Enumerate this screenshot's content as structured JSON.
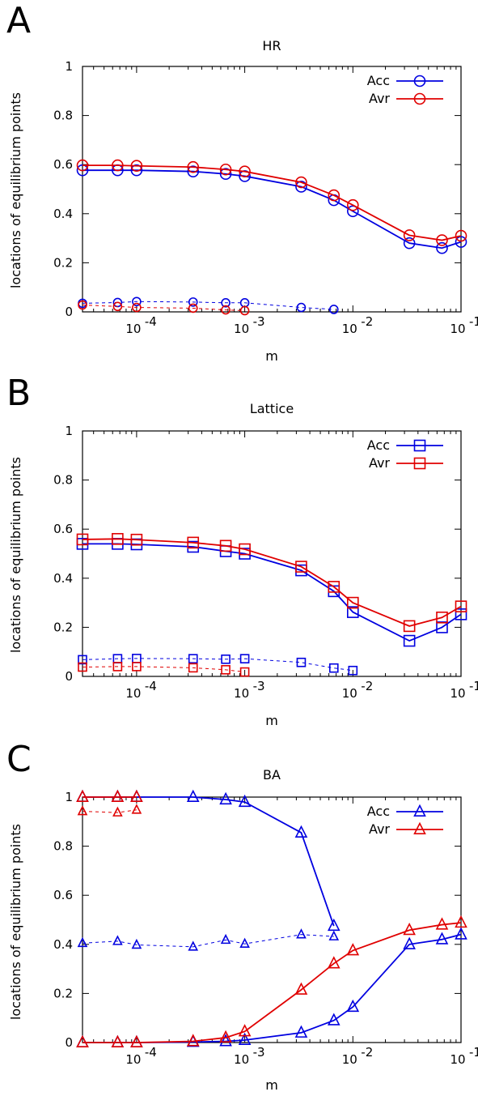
{
  "colors": {
    "acc": "#0000e0",
    "avr": "#e00000"
  },
  "chart_data": [
    {
      "panel": "A",
      "title": "HR",
      "type": "line",
      "marker": "circle",
      "xscale": "log",
      "xlim": [
        3.16e-05,
        0.1
      ],
      "ylim": [
        0,
        1
      ],
      "xlabel": "m",
      "ylabel": "locations of equilibrium points",
      "yticks": [
        "0",
        "0.2",
        "0.4",
        "0.6",
        "0.8",
        "1"
      ],
      "xticks": [
        {
          "base": "10",
          "exp": "-4",
          "value": 0.0001
        },
        {
          "base": "10",
          "exp": "-3",
          "value": 0.001
        },
        {
          "base": "10",
          "exp": "-2",
          "value": 0.01
        },
        {
          "base": "10",
          "exp": "-1",
          "value": 0.1
        }
      ],
      "legend_position": "top-right",
      "series": [
        {
          "name": "Acc",
          "color": "acc",
          "style": "solid",
          "x": [
            3.16e-05,
            6.67e-05,
            0.0001,
            0.000333,
            0.000667,
            0.001,
            0.00333,
            0.00667,
            0.01,
            0.0333,
            0.0667,
            0.1
          ],
          "y": [
            0.577,
            0.577,
            0.577,
            0.572,
            0.562,
            0.553,
            0.51,
            0.455,
            0.41,
            0.28,
            0.26,
            0.285
          ]
        },
        {
          "name": "Avr",
          "color": "avr",
          "style": "solid",
          "x": [
            3.16e-05,
            6.67e-05,
            0.0001,
            0.000333,
            0.000667,
            0.001,
            0.00333,
            0.00667,
            0.01,
            0.0333,
            0.0667,
            0.1
          ],
          "y": [
            0.597,
            0.597,
            0.595,
            0.59,
            0.58,
            0.572,
            0.528,
            0.475,
            0.435,
            0.312,
            0.292,
            0.31
          ]
        },
        {
          "color": "acc",
          "style": "dashed",
          "x": [
            3.16e-05,
            6.67e-05,
            0.0001,
            0.000333,
            0.000667,
            0.001,
            0.00333,
            0.00667
          ],
          "y": [
            0.035,
            0.038,
            0.042,
            0.04,
            0.037,
            0.037,
            0.018,
            0.01
          ]
        },
        {
          "color": "avr",
          "style": "dashed",
          "x": [
            3.16e-05,
            6.67e-05,
            0.0001,
            0.000333,
            0.000667,
            0.001
          ],
          "y": [
            0.028,
            0.022,
            0.018,
            0.015,
            0.008,
            0.005
          ]
        }
      ]
    },
    {
      "panel": "B",
      "title": "Lattice",
      "type": "line",
      "marker": "square",
      "xscale": "log",
      "xlim": [
        3.16e-05,
        0.1
      ],
      "ylim": [
        0,
        1
      ],
      "xlabel": "m",
      "ylabel": "locations of equilibrium points",
      "yticks": [
        "0",
        "0.2",
        "0.4",
        "0.6",
        "0.8",
        "1"
      ],
      "xticks": [
        {
          "base": "10",
          "exp": "-4",
          "value": 0.0001
        },
        {
          "base": "10",
          "exp": "-3",
          "value": 0.001
        },
        {
          "base": "10",
          "exp": "-2",
          "value": 0.01
        },
        {
          "base": "10",
          "exp": "-1",
          "value": 0.1
        }
      ],
      "legend_position": "top-right",
      "series": [
        {
          "name": "Acc",
          "color": "acc",
          "style": "solid",
          "x": [
            3.16e-05,
            6.67e-05,
            0.0001,
            0.000333,
            0.000667,
            0.001,
            0.00333,
            0.00667,
            0.01,
            0.0333,
            0.0667,
            0.1
          ],
          "y": [
            0.54,
            0.54,
            0.538,
            0.528,
            0.51,
            0.5,
            0.432,
            0.347,
            0.262,
            0.145,
            0.2,
            0.253
          ]
        },
        {
          "name": "Avr",
          "color": "avr",
          "style": "solid",
          "x": [
            3.16e-05,
            6.67e-05,
            0.0001,
            0.000333,
            0.000667,
            0.001,
            0.00333,
            0.00667,
            0.01,
            0.0333,
            0.0667,
            0.1
          ],
          "y": [
            0.558,
            0.56,
            0.557,
            0.545,
            0.532,
            0.518,
            0.447,
            0.365,
            0.3,
            0.205,
            0.24,
            0.285
          ]
        },
        {
          "color": "acc",
          "style": "dashed",
          "x": [
            3.16e-05,
            6.67e-05,
            0.0001,
            0.000333,
            0.000667,
            0.001,
            0.00333,
            0.00667,
            0.01
          ],
          "y": [
            0.068,
            0.072,
            0.073,
            0.072,
            0.07,
            0.072,
            0.057,
            0.034,
            0.024
          ]
        },
        {
          "color": "avr",
          "style": "dashed",
          "x": [
            3.16e-05,
            6.67e-05,
            0.0001,
            0.000333,
            0.000667,
            0.001
          ],
          "y": [
            0.038,
            0.04,
            0.04,
            0.035,
            0.027,
            0.018
          ]
        }
      ]
    },
    {
      "panel": "C",
      "title": "BA",
      "type": "line",
      "marker": "triangle",
      "xscale": "log",
      "xlim": [
        3.16e-05,
        0.1
      ],
      "ylim": [
        0,
        1
      ],
      "xlabel": "m",
      "ylabel": "locations of equilibrium points",
      "yticks": [
        "0",
        "0.2",
        "0.4",
        "0.6",
        "0.8",
        "1"
      ],
      "xticks": [
        {
          "base": "10",
          "exp": "-4",
          "value": 0.0001
        },
        {
          "base": "10",
          "exp": "-3",
          "value": 0.001
        },
        {
          "base": "10",
          "exp": "-2",
          "value": 0.01
        },
        {
          "base": "10",
          "exp": "-1",
          "value": 0.1
        }
      ],
      "legend_position": "top-right",
      "series": [
        {
          "name": "Acc",
          "color": "acc",
          "style": "solid",
          "x": [
            3.16e-05,
            6.67e-05,
            0.0001,
            0.000333,
            0.000667,
            0.001,
            0.00333,
            0.00667
          ],
          "y": [
            1.0,
            1.0,
            1.0,
            1.0,
            0.99,
            0.98,
            0.855,
            0.475
          ]
        },
        {
          "color": "acc",
          "style": "solid",
          "x": [
            3.16e-05,
            6.67e-05,
            0.0001,
            0.000333,
            0.000667,
            0.001,
            0.00333,
            0.00667,
            0.01,
            0.0333,
            0.0667,
            0.1
          ],
          "y": [
            0.0,
            0.0,
            0.0,
            0.002,
            0.005,
            0.01,
            0.04,
            0.09,
            0.145,
            0.4,
            0.42,
            0.44
          ]
        },
        {
          "name": "Avr",
          "color": "avr",
          "style": "solid",
          "x": [
            3.16e-05,
            6.67e-05,
            0.0001,
            0.000333,
            0.000667,
            0.001,
            0.00333,
            0.00667,
            0.01,
            0.0333,
            0.0667,
            0.1
          ],
          "y": [
            0.0,
            0.0,
            0.0,
            0.005,
            0.02,
            0.045,
            0.215,
            0.322,
            0.375,
            0.458,
            0.48,
            0.488
          ]
        },
        {
          "color": "acc",
          "style": "dashed",
          "x": [
            3.16e-05,
            6.67e-05,
            0.0001,
            0.000333,
            0.000667,
            0.001,
            0.00333,
            0.00667
          ],
          "y": [
            0.405,
            0.413,
            0.398,
            0.39,
            0.418,
            0.402,
            0.44,
            0.432
          ]
        },
        {
          "color": "avr",
          "style": "dashed",
          "x": [
            3.16e-05,
            6.67e-05,
            0.0001
          ],
          "y": [
            0.942,
            0.937,
            0.948
          ]
        },
        {
          "color": "avr",
          "style": "solid",
          "x": [
            3.16e-05,
            6.67e-05,
            0.0001
          ],
          "y": [
            1.0,
            1.0,
            1.0
          ]
        }
      ]
    }
  ]
}
